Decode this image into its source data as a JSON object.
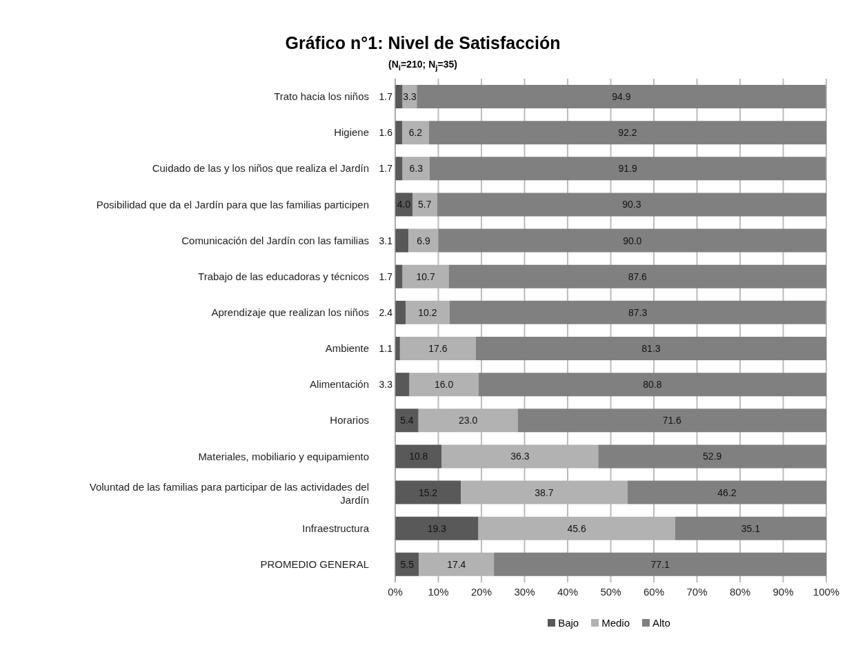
{
  "chart_data": {
    "type": "bar",
    "orientation": "horizontal",
    "stacked": true,
    "title": "Gráfico n°1: Nivel de Satisfacción",
    "subtitle": "(N$_{i}$=210; N$_{j}$=35)",
    "categories": [
      "Trato hacia los niños",
      "Higiene",
      "Cuidado de las y los niños que realiza el Jardín",
      "Posibilidad que da el Jardín para que las familias participen",
      "Comunicación del Jardín con las familias",
      "Trabajo de las educadoras y técnicos",
      "Aprendizaje que realizan los niños",
      "Ambiente",
      "Alimentación",
      "Horarios",
      "Materiales, mobiliario y equipamiento",
      "Voluntad de las familias para participar de las actividades del Jardín",
      "Infraestructura",
      "PROMEDIO GENERAL"
    ],
    "series": [
      {
        "name": "Bajo",
        "color": "#595959",
        "values": [
          1.7,
          1.6,
          1.7,
          4.0,
          3.1,
          1.7,
          2.4,
          1.1,
          3.3,
          5.4,
          10.8,
          15.2,
          19.3,
          5.5
        ],
        "value_labels": [
          "1.7",
          "1.6",
          "1.7",
          "4.0",
          "3.1",
          "1.7",
          "2.4",
          "1.1",
          "3.3",
          "5.4",
          "10.8",
          "15.2",
          "19.3",
          "5.5"
        ]
      },
      {
        "name": "Medio",
        "color": "#b2b2b2",
        "values": [
          3.3,
          6.2,
          6.3,
          5.7,
          6.9,
          10.7,
          10.2,
          17.6,
          16.0,
          23.0,
          36.3,
          38.7,
          45.6,
          17.4
        ],
        "value_labels": [
          "3.3",
          "6.2",
          "6.3",
          "5.7",
          "6.9",
          "10.7",
          "10.2",
          "17.6",
          "16.0",
          "23.0",
          "36.3",
          "38.7",
          "45.6",
          "17.4"
        ]
      },
      {
        "name": "Alto",
        "color": "#808080",
        "values": [
          94.9,
          92.2,
          91.9,
          90.3,
          90.0,
          87.6,
          87.3,
          81.3,
          80.8,
          71.6,
          52.9,
          46.2,
          35.1,
          77.1
        ],
        "value_labels": [
          "94.9",
          "92.2",
          "91.9",
          "90.3",
          "90.0",
          "87.6",
          "87.3",
          "81.3",
          "80.8",
          "71.6",
          "52.9",
          "46.2",
          "35.1",
          "77.1"
        ]
      }
    ],
    "xlim": [
      0,
      100
    ],
    "xticks": [
      {
        "value": 0,
        "label": "0%"
      },
      {
        "value": 10,
        "label": "10%"
      },
      {
        "value": 20,
        "label": "20%"
      },
      {
        "value": 30,
        "label": "30%"
      },
      {
        "value": 40,
        "label": "40%"
      },
      {
        "value": 50,
        "label": "50%"
      },
      {
        "value": 60,
        "label": "60%"
      },
      {
        "value": 70,
        "label": "70%"
      },
      {
        "value": 80,
        "label": "80%"
      },
      {
        "value": 90,
        "label": "90%"
      },
      {
        "value": 100,
        "label": "100%"
      }
    ],
    "grid": "x",
    "legend": "bottom"
  }
}
